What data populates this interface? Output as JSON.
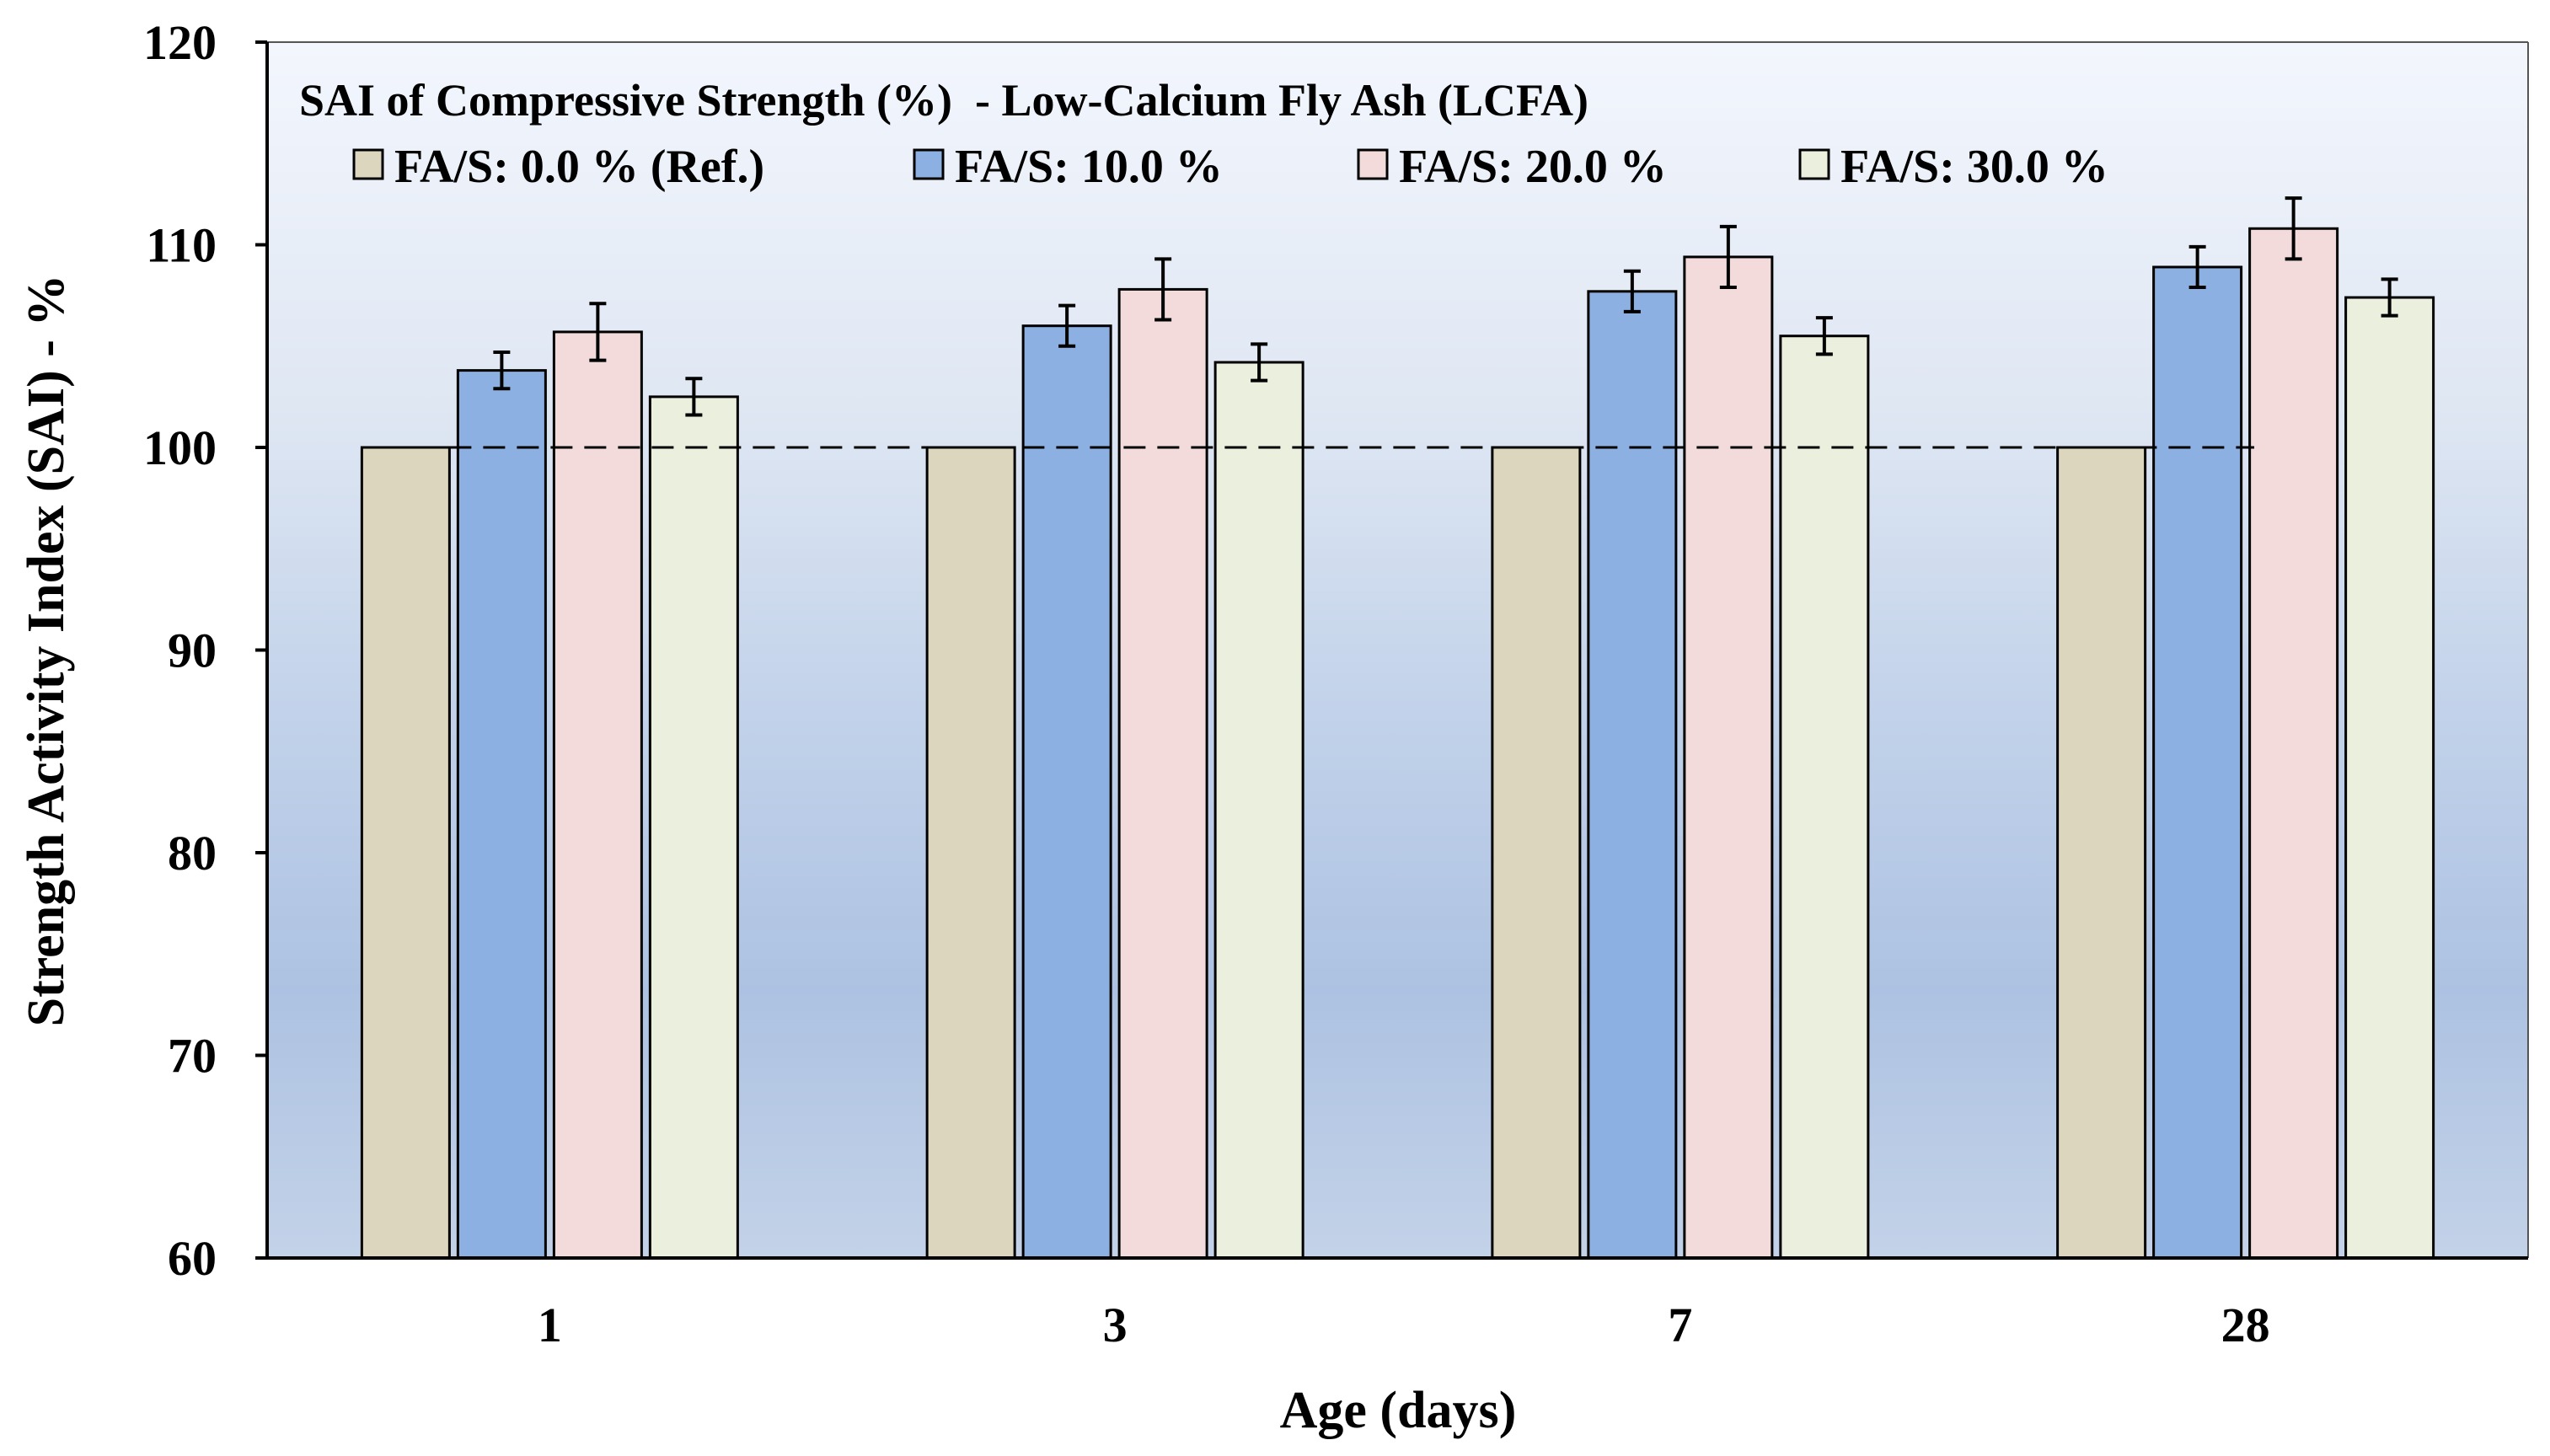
{
  "chart_data": {
    "type": "bar",
    "title": "SAI of Compressive Strength (%)  - Low-Calcium Fly Ash (LCFA)",
    "xlabel": "Age (days)",
    "ylabel": "Strength Activity Index (SAI) - %",
    "categories": [
      "1",
      "3",
      "7",
      "28"
    ],
    "ylim": [
      60,
      120
    ],
    "yticks": [
      60,
      70,
      80,
      90,
      100,
      110,
      120
    ],
    "grid": false,
    "legend_position": "top-left",
    "reference_line": 100,
    "series": [
      {
        "name": "FA/S: 0.0 % (Ref.)",
        "color": "#ddd6bf",
        "values": [
          100,
          100,
          100,
          100
        ],
        "errors": [
          0,
          0,
          0,
          0
        ]
      },
      {
        "name": "FA/S: 10.0 %",
        "color": "#8db0e2",
        "values": [
          103.8,
          106.0,
          107.7,
          108.9
        ],
        "errors": [
          0.9,
          1.0,
          1.0,
          1.0
        ]
      },
      {
        "name": "FA/S: 20.0 %",
        "color": "#f3dbdb",
        "values": [
          105.7,
          107.8,
          109.4,
          110.8
        ],
        "errors": [
          1.4,
          1.5,
          1.5,
          1.5
        ]
      },
      {
        "name": "FA/S: 30.0 %",
        "color": "#eaf0dd",
        "values": [
          102.5,
          104.2,
          105.5,
          107.4
        ],
        "errors": [
          0.9,
          0.9,
          0.9,
          0.9
        ]
      }
    ]
  }
}
